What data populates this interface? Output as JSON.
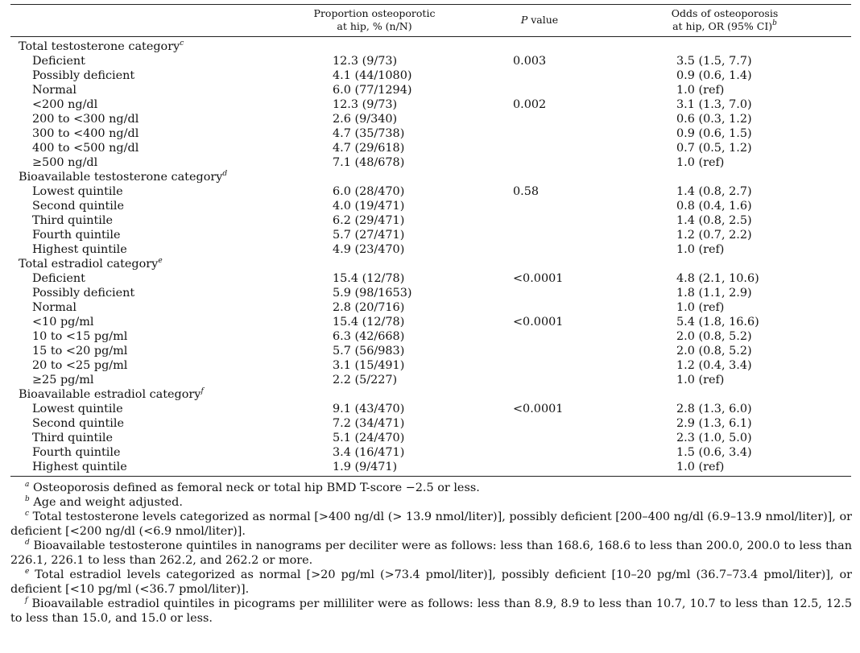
{
  "header": {
    "col1_line1": "Proportion osteoporotic",
    "col1_line2": "at hip, % (n/N)",
    "col2_p": "P",
    "col2_rest": " value",
    "col3_line1": "Odds of osteoporosis",
    "col3_line2": "at hip, OR (95% CI)",
    "col3_sup": "b"
  },
  "rows": [
    {
      "label": "Total testosterone category",
      "sup": "c",
      "cat": true
    },
    {
      "label": "Deficient",
      "p": "12.3 (9/73)",
      "pv": "0.003",
      "or": "3.5 (1.5, 7.7)"
    },
    {
      "label": "Possibly deficient",
      "p": "4.1 (44/1080)",
      "or": "0.9 (0.6, 1.4)"
    },
    {
      "label": "Normal",
      "p": "6.0 (77/1294)",
      "or": "1.0 (ref)"
    },
    {
      "label": "<200 ng/dl",
      "p": "12.3 (9/73)",
      "pv": "0.002",
      "or": "3.1 (1.3, 7.0)"
    },
    {
      "label": "200 to <300 ng/dl",
      "p": "2.6 (9/340)",
      "or": "0.6 (0.3, 1.2)"
    },
    {
      "label": "300 to <400 ng/dl",
      "p": "4.7 (35/738)",
      "or": "0.9 (0.6, 1.5)"
    },
    {
      "label": "400 to <500 ng/dl",
      "p": "4.7 (29/618)",
      "or": "0.7 (0.5, 1.2)"
    },
    {
      "label": "≥500 ng/dl",
      "p": "7.1 (48/678)",
      "or": "1.0 (ref)"
    },
    {
      "label": "Bioavailable testosterone category",
      "sup": "d",
      "cat": true
    },
    {
      "label": "Lowest quintile",
      "p": "6.0 (28/470)",
      "pv": "0.58",
      "or": "1.4 (0.8, 2.7)"
    },
    {
      "label": "Second quintile",
      "p": "4.0 (19/471)",
      "or": "0.8 (0.4, 1.6)"
    },
    {
      "label": "Third quintile",
      "p": "6.2 (29/471)",
      "or": "1.4 (0.8, 2.5)"
    },
    {
      "label": "Fourth quintile",
      "p": "5.7 (27/471)",
      "or": "1.2 (0.7, 2.2)"
    },
    {
      "label": "Highest quintile",
      "p": "4.9 (23/470)",
      "or": "1.0 (ref)"
    },
    {
      "label": "Total estradiol category",
      "sup": "e",
      "cat": true
    },
    {
      "label": "Deficient",
      "p": "15.4 (12/78)",
      "pv": "<0.0001",
      "or": "4.8 (2.1, 10.6)"
    },
    {
      "label": "Possibly deficient",
      "p": "5.9 (98/1653)",
      "or": "1.8 (1.1, 2.9)"
    },
    {
      "label": "Normal",
      "p": "2.8 (20/716)",
      "or": "1.0 (ref)"
    },
    {
      "label": "<10 pg/ml",
      "p": "15.4 (12/78)",
      "pv": "<0.0001",
      "or": "5.4 (1.8, 16.6)"
    },
    {
      "label": "10 to <15 pg/ml",
      "p": "6.3 (42/668)",
      "or": "2.0 (0.8, 5.2)"
    },
    {
      "label": "15 to <20 pg/ml",
      "p": "5.7 (56/983)",
      "or": "2.0 (0.8, 5.2)"
    },
    {
      "label": "20 to <25 pg/ml",
      "p": "3.1 (15/491)",
      "or": "1.2 (0.4, 3.4)"
    },
    {
      "label": "≥25 pg/ml",
      "p": "2.2 (5/227)",
      "or": "1.0 (ref)"
    },
    {
      "label": "Bioavailable estradiol category",
      "sup": "f",
      "cat": true
    },
    {
      "label": "Lowest quintile",
      "p": "9.1 (43/470)",
      "pv": "<0.0001",
      "or": "2.8 (1.3, 6.0)"
    },
    {
      "label": "Second quintile",
      "p": "7.2 (34/471)",
      "or": "2.9 (1.3, 6.1)"
    },
    {
      "label": "Third quintile",
      "p": "5.1 (24/470)",
      "or": "2.3 (1.0, 5.0)"
    },
    {
      "label": "Fourth quintile",
      "p": "3.4 (16/471)",
      "or": "1.5 (0.6, 3.4)"
    },
    {
      "label": "Highest quintile",
      "p": "1.9 (9/471)",
      "or": "1.0 (ref)"
    }
  ],
  "footnotes": [
    {
      "mark": "a",
      "text": "Osteoporosis defined as femoral neck or total hip BMD T-score −2.5 or less."
    },
    {
      "mark": "b",
      "text": "Age and weight adjusted."
    },
    {
      "mark": "c",
      "text": "Total testosterone levels categorized as normal [>400 ng/dl (> 13.9 nmol/liter)], possibly deficient [200–400 ng/dl (6.9–13.9 nmol/liter)], or deficient [<200 ng/dl (<6.9 nmol/liter)]."
    },
    {
      "mark": "d",
      "text": "Bioavailable testosterone quintiles in nanograms per deciliter were as follows: less than 168.6, 168.6 to less than 200.0, 200.0 to less than 226.1, 226.1 to less than 262.2, and 262.2 or more."
    },
    {
      "mark": "e",
      "text": "Total estradiol levels categorized as normal [>20 pg/ml (>73.4 pmol/liter)], possibly deficient [10–20 pg/ml (36.7–73.4 pmol/liter)], or deficient [<10 pg/ml (<36.7 pmol/liter)]."
    },
    {
      "mark": "f",
      "text": "Bioavailable estradiol quintiles in picograms per milliliter were as follows: less than 8.9, 8.9 to less than 10.7, 10.7 to less than 12.5, 12.5 to less than 15.0, and 15.0 or less."
    }
  ]
}
